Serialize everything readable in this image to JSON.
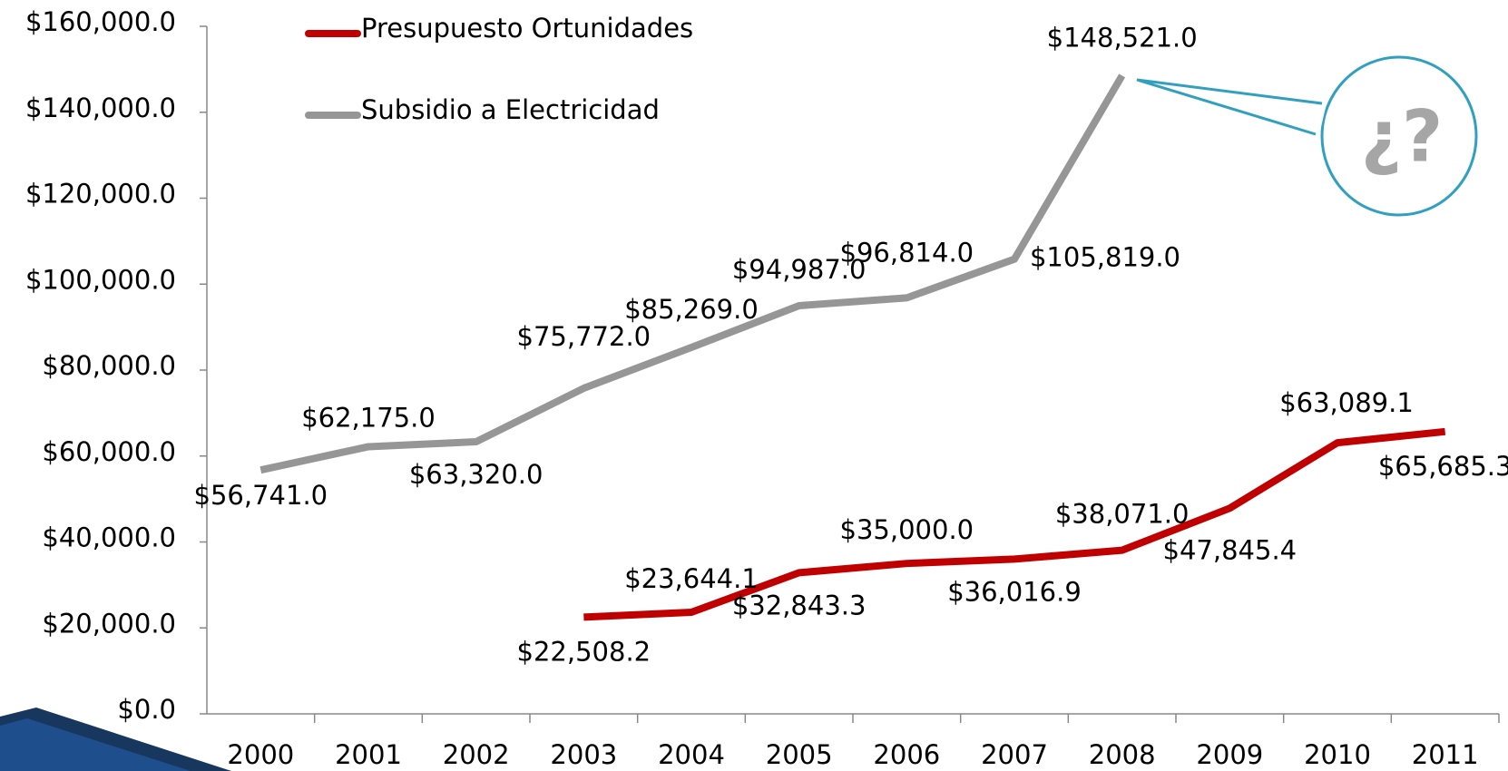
{
  "chart_data": {
    "type": "line",
    "categories": [
      "2000",
      "2001",
      "2002",
      "2003",
      "2004",
      "2005",
      "2006",
      "2007",
      "2008",
      "2009",
      "2010",
      "2011"
    ],
    "series": [
      {
        "name": "Presupuesto Ortunidades",
        "color": "#c00000",
        "values": [
          null,
          null,
          null,
          22508.2,
          23644.1,
          32843.3,
          35000.0,
          36016.9,
          38071.0,
          47845.4,
          63089.1,
          65685.3
        ],
        "value_labels": [
          null,
          null,
          null,
          "$22,508.2",
          "$23,644.1",
          "$32,843.3",
          "$35,000.0",
          "$36,016.9",
          "$38,071.0",
          "$47,845.4",
          "$63,089.1",
          "$65,685.3"
        ]
      },
      {
        "name": "Subsidio a Electricidad",
        "color": "#969696",
        "values": [
          56741.0,
          62175.0,
          63320.0,
          75772.0,
          85269.0,
          94987.0,
          96814.0,
          105819.0,
          148521.0,
          null,
          null,
          null
        ],
        "value_labels": [
          "$56,741.0",
          "$62,175.0",
          "$63,320.0",
          "$75,772.0",
          "$85,269.0",
          "$94,987.0",
          "$96,814.0",
          "$105,819.0",
          "$148,521.0",
          null,
          null,
          null
        ]
      }
    ],
    "ylim": [
      0,
      160000
    ],
    "yticks": [
      {
        "value": 0,
        "label": "$0.0"
      },
      {
        "value": 20000,
        "label": "$20,000.0"
      },
      {
        "value": 40000,
        "label": "$40,000.0"
      },
      {
        "value": 60000,
        "label": "$60,000.0"
      },
      {
        "value": 80000,
        "label": "$80,000.0"
      },
      {
        "value": 100000,
        "label": "$100,000.0"
      },
      {
        "value": 120000,
        "label": "$120,000.0"
      },
      {
        "value": 140000,
        "label": "$140,000.0"
      },
      {
        "value": 160000,
        "label": "$160,000.0"
      }
    ],
    "legend": "top-left",
    "annotation": "¿?"
  }
}
